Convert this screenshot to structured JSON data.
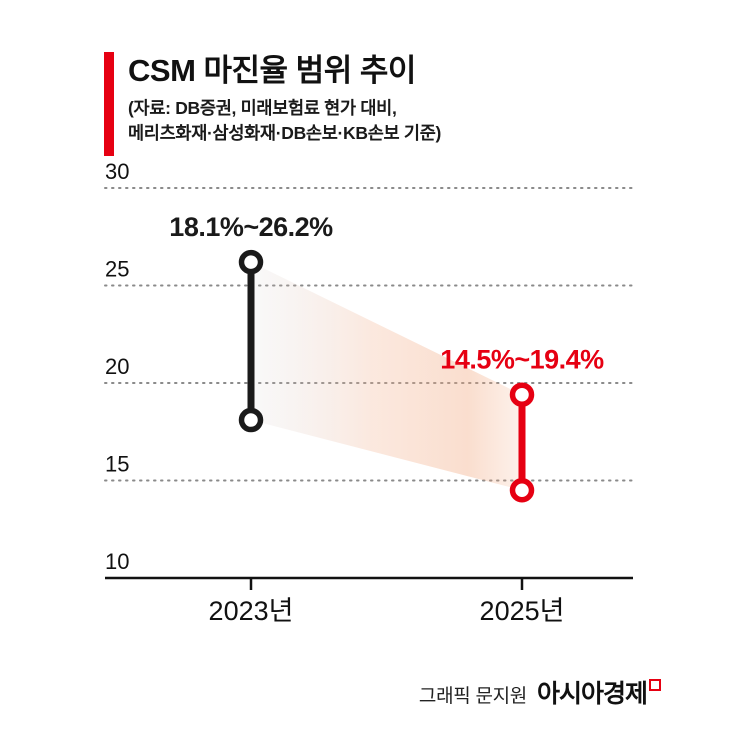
{
  "header": {
    "title": "CSM 마진율 범위 추이",
    "subtitle_line1": "(자료: DB증권, 미래보험료 현가 대비,",
    "subtitle_line2": "메리츠화재·삼성화재·DB손보·KB손보 기준)"
  },
  "chart_data": {
    "type": "range-bar",
    "title": "CSM 마진율 범위 추이",
    "categories": [
      "2023년",
      "2025년"
    ],
    "series": [
      {
        "name": "2023년",
        "low": 18.1,
        "high": 26.2,
        "label": "18.1%~26.2%",
        "color": "#1a1a1a"
      },
      {
        "name": "2025년",
        "low": 14.5,
        "high": 19.4,
        "label": "14.5%~19.4%",
        "color": "#e60012"
      }
    ],
    "ylim": [
      10,
      30
    ],
    "yticks": [
      30,
      25,
      20,
      15,
      10
    ],
    "grid": "dotted-horizontal",
    "legend": "none",
    "band_between_ranges": true
  },
  "footer": {
    "credit": "그래픽 문지원",
    "brand": "아시아경제"
  },
  "colors": {
    "accent_red": "#e60012",
    "series_black": "#1a1a1a",
    "grid_gray": "#8a8a8a",
    "axis_black": "#111111"
  }
}
